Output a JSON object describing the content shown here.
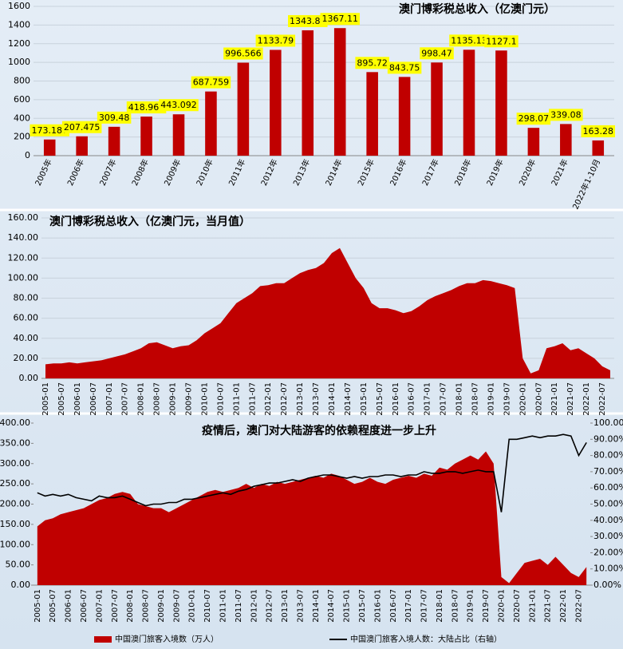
{
  "chart_data": [
    {
      "type": "bar",
      "title": "澳门博彩税总收入（亿澳门元）",
      "color": "#c00000",
      "label_color": "#ffff00",
      "grid": true,
      "categories": [
        "2005年",
        "2006年",
        "2007年",
        "2008年",
        "2009年",
        "2010年",
        "2011年",
        "2012年",
        "2013年",
        "2014年",
        "2015年",
        "2016年",
        "2017年",
        "2018年",
        "2019年",
        "2020年",
        "2021年",
        "2022年1-10月"
      ],
      "values": [
        173.187,
        207.475,
        309.48,
        418.965,
        443.092,
        687.759,
        996.566,
        1133.79,
        1343.81,
        1367.11,
        895.72,
        843.75,
        998.47,
        1135.13,
        1127.1,
        298.07,
        339.08,
        163.28
      ],
      "ylim": [
        0,
        1600
      ],
      "yticks": [
        0,
        200,
        400,
        600,
        800,
        1000,
        1200,
        1400,
        1600
      ]
    },
    {
      "type": "area",
      "title": "澳门博彩税总收入（亿澳门元，当月值）",
      "grid": true,
      "categories": [
        "2005-01",
        null,
        "2005-07",
        null,
        "2006-01",
        null,
        "2006-07",
        null,
        "2007-01",
        null,
        "2007-07",
        null,
        "2008-01",
        null,
        "2008-07",
        null,
        "2009-01",
        null,
        "2009-07",
        null,
        "2010-01",
        null,
        "2010-07",
        null,
        "2011-01",
        null,
        "2011-07",
        null,
        "2012-01",
        null,
        "2012-07",
        null,
        "2013-01",
        null,
        "2013-07",
        null,
        "2014-01",
        null,
        "2014-07",
        null,
        "2015-01",
        null,
        "2015-07",
        null,
        "2016-01",
        null,
        "2016-07",
        null,
        "2017-01",
        null,
        "2017-07",
        null,
        "2018-01",
        null,
        "2018-07",
        null,
        "2019-01",
        null,
        "2019-07",
        null,
        "2020-01",
        null,
        "2020-07",
        null,
        "2021-01",
        null,
        "2021-07",
        null,
        "2022-01",
        null,
        "2022-07",
        null
      ],
      "series": [
        {
          "color": "#c00000",
          "values": [
            14,
            15,
            15,
            16,
            15,
            16,
            17,
            18,
            20,
            22,
            24,
            27,
            30,
            35,
            36,
            33,
            30,
            32,
            33,
            38,
            45,
            50,
            55,
            65,
            75,
            80,
            85,
            92,
            93,
            95,
            95,
            100,
            105,
            108,
            110,
            115,
            125,
            130,
            115,
            100,
            90,
            75,
            70,
            70,
            68,
            65,
            67,
            72,
            78,
            82,
            85,
            88,
            92,
            95,
            95,
            98,
            97,
            95,
            93,
            90,
            20,
            5,
            8,
            30,
            32,
            35,
            28,
            30,
            25,
            20,
            12,
            8
          ]
        }
      ],
      "ylim": [
        0,
        160
      ],
      "yticks": [
        {
          "value": 0,
          "label": "0.00"
        },
        {
          "value": 20,
          "label": "20.00"
        },
        {
          "value": 40,
          "label": "40.00"
        },
        {
          "value": 60,
          "label": "60.00"
        },
        {
          "value": 80,
          "label": "80.00"
        },
        {
          "value": 100,
          "label": "100.00"
        },
        {
          "value": 120,
          "label": "120.00"
        },
        {
          "value": 140,
          "label": "140.00"
        },
        {
          "value": 160,
          "label": "160.00"
        }
      ]
    },
    {
      "type": "area",
      "title": "疫情后，澳门对大陆游客的依赖程度进一步上升",
      "grid": false,
      "legend": "bottom",
      "categories": [
        "2005-01",
        null,
        "2005-07",
        null,
        "2006-01",
        null,
        "2006-07",
        null,
        "2007-01",
        null,
        "2007-07",
        null,
        "2008-01",
        null,
        "2008-07",
        null,
        "2009-01",
        null,
        "2009-07",
        null,
        "2010-01",
        null,
        "2010-07",
        null,
        "2011-01",
        null,
        "2011-07",
        null,
        "2012-01",
        null,
        "2012-07",
        null,
        "2013-01",
        null,
        "2013-07",
        null,
        "2014-01",
        null,
        "2014-07",
        null,
        "2015-01",
        null,
        "2015-07",
        null,
        "2016-01",
        null,
        "2016-07",
        null,
        "2017-01",
        null,
        "2017-07",
        null,
        "2018-01",
        null,
        "2018-07",
        null,
        "2019-01",
        null,
        "2019-07",
        null,
        "2020-01",
        null,
        "2020-07",
        null,
        "2021-01",
        null,
        "2021-07",
        null,
        "2022-01",
        null,
        "2022-07",
        null
      ],
      "series": [
        {
          "name": "中国澳门旅客入境数（万人）",
          "color": "#c00000",
          "values": [
            145,
            160,
            165,
            175,
            180,
            185,
            190,
            200,
            210,
            215,
            225,
            230,
            225,
            200,
            195,
            190,
            190,
            180,
            190,
            200,
            210,
            220,
            230,
            235,
            230,
            235,
            240,
            250,
            240,
            250,
            245,
            255,
            250,
            255,
            260,
            265,
            270,
            265,
            275,
            270,
            260,
            250,
            255,
            265,
            255,
            250,
            260,
            265,
            270,
            265,
            275,
            270,
            290,
            285,
            300,
            310,
            320,
            310,
            330,
            300,
            20,
            5,
            30,
            55,
            60,
            65,
            50,
            70,
            50,
            30,
            20,
            45
          ]
        },
        {
          "name": "中国澳门旅客入境人数：大陆占比（右轴）",
          "color": "#000000",
          "axis": "y2",
          "values": [
            57,
            55,
            56,
            55,
            56,
            54,
            53,
            52,
            55,
            54,
            54,
            55,
            53,
            51,
            49,
            50,
            50,
            51,
            51,
            53,
            53,
            54,
            55,
            56,
            57,
            56,
            58,
            59,
            61,
            62,
            63,
            63,
            64,
            65,
            64,
            66,
            67,
            68,
            68,
            67,
            66,
            67,
            66,
            67,
            67,
            68,
            68,
            67,
            68,
            68,
            70,
            69,
            69,
            70,
            70,
            69,
            70,
            71,
            70,
            70,
            45,
            90,
            90,
            91,
            92,
            91,
            92,
            92,
            93,
            92,
            80,
            88
          ]
        }
      ],
      "ylim": [
        0,
        400
      ],
      "yticks": [
        {
          "value": 0,
          "label": "0.00"
        },
        {
          "value": 50,
          "label": "50.00"
        },
        {
          "value": 100,
          "label": "100.00"
        },
        {
          "value": 150,
          "label": "150.00"
        },
        {
          "value": 200,
          "label": "200.00"
        },
        {
          "value": 250,
          "label": "250.00"
        },
        {
          "value": 300,
          "label": "300.00"
        },
        {
          "value": 350,
          "label": "350.00"
        },
        {
          "value": 400,
          "label": "400.00"
        }
      ],
      "y2lim": [
        0,
        100
      ],
      "y2ticks": [
        {
          "value": 0,
          "label": "0.00%"
        },
        {
          "value": 10,
          "label": "10.00%"
        },
        {
          "value": 20,
          "label": "20.00%"
        },
        {
          "value": 30,
          "label": "30.00%"
        },
        {
          "value": 40,
          "label": "40.00%"
        },
        {
          "value": 50,
          "label": "50.00%"
        },
        {
          "value": 60,
          "label": "60.00%"
        },
        {
          "value": 70,
          "label": "70.00%"
        },
        {
          "value": 80,
          "label": "80.00%"
        },
        {
          "value": 90,
          "label": "90.00%"
        },
        {
          "value": 100,
          "label": "100.00%"
        }
      ]
    }
  ]
}
